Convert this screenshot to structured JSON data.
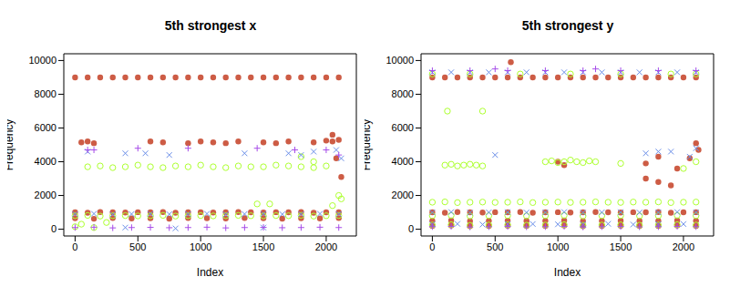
{
  "chart_data": [
    {
      "type": "scatter",
      "title": "5th strongest x",
      "x_label": "Index",
      "y_label": "Frequency",
      "xlim": [
        -90,
        2240
      ],
      "xticks": [
        0,
        500,
        1000,
        1500,
        2000
      ],
      "ylim": [
        -400,
        10400
      ],
      "yticks": [
        0,
        2000,
        4000,
        6000,
        8000,
        10000
      ],
      "series": [
        {
          "color": "#CD5C45",
          "marker": "circle",
          "x": [
            0,
            100,
            200,
            300,
            400,
            500,
            600,
            700,
            800,
            900,
            1000,
            1100,
            1200,
            1300,
            1400,
            1500,
            1600,
            1700,
            1800,
            1900,
            2000,
            2100,
            50,
            100,
            150,
            600,
            700,
            900,
            1000,
            1100,
            1200,
            1300,
            1500,
            1600,
            1700,
            1900,
            2000,
            2050,
            2100,
            0,
            100,
            200,
            300,
            400,
            500,
            600,
            700,
            800,
            900,
            1000,
            1100,
            1200,
            1300,
            1400,
            1500,
            1600,
            1700,
            1800,
            1900,
            2000,
            2100,
            0,
            150,
            300,
            450,
            600,
            750,
            900,
            1050,
            1200,
            1350,
            1500,
            1650,
            1800,
            1950,
            2100,
            2050,
            2080,
            2120
          ],
          "values": [
            9000,
            9000,
            9000,
            9000,
            9000,
            9000,
            9000,
            9000,
            9000,
            9000,
            9000,
            9000,
            9000,
            9000,
            9000,
            9000,
            9000,
            9000,
            9000,
            9000,
            9000,
            9000,
            5150,
            5200,
            5100,
            5200,
            5150,
            5100,
            5200,
            5150,
            5100,
            5200,
            5150,
            5100,
            5200,
            5150,
            5250,
            5200,
            5300,
            1000,
            980,
            1020,
            1000,
            990,
            1010,
            1000,
            1020,
            980,
            1000,
            1010,
            990,
            1000,
            1020,
            1000,
            990,
            1010,
            1000,
            1020,
            980,
            1000,
            1010,
            650,
            620,
            660,
            640,
            650,
            630,
            660,
            650,
            640,
            660,
            650,
            630,
            650,
            640,
            660,
            5600,
            4200,
            3100
          ]
        },
        {
          "color": "#ADFF2F",
          "marker": "open_circle",
          "x": [
            100,
            200,
            300,
            400,
            500,
            600,
            700,
            800,
            900,
            1000,
            1100,
            1200,
            1300,
            1400,
            1500,
            1600,
            1700,
            1800,
            1900,
            2000,
            1800,
            1900,
            0,
            100,
            200,
            300,
            400,
            500,
            600,
            700,
            800,
            900,
            1000,
            1100,
            1200,
            1300,
            1400,
            1500,
            1600,
            1700,
            1800,
            1900,
            2000,
            2100,
            0,
            50,
            150,
            250,
            1450,
            1550,
            2050,
            2100,
            2120
          ],
          "values": [
            3700,
            3750,
            3650,
            3700,
            3800,
            3700,
            3650,
            3750,
            3700,
            3800,
            3700,
            3650,
            3750,
            3700,
            3700,
            3800,
            3750,
            3700,
            3650,
            3750,
            4300,
            4000,
            800,
            820,
            780,
            800,
            810,
            790,
            800,
            820,
            780,
            800,
            810,
            790,
            800,
            820,
            800,
            790,
            810,
            800,
            820,
            780,
            800,
            810,
            150,
            300,
            100,
            400,
            1500,
            1500,
            1400,
            2000,
            1800
          ]
        },
        {
          "color": "#6A8EE8",
          "marker": "x",
          "x": [
            100,
            400,
            560,
            750,
            1350,
            1700,
            1800,
            1900,
            2080,
            2120,
            0,
            150,
            300,
            450,
            600,
            750,
            900,
            1050,
            1200,
            1350,
            1500,
            1650,
            1800,
            1950,
            2100,
            400,
            800,
            1500
          ],
          "values": [
            4600,
            4500,
            4500,
            4400,
            4500,
            4500,
            4400,
            4600,
            4700,
            4200,
            900,
            920,
            880,
            900,
            910,
            890,
            900,
            920,
            880,
            900,
            910,
            890,
            900,
            920,
            900,
            100,
            50,
            100
          ]
        },
        {
          "color": "#A64CE8",
          "marker": "plus",
          "x": [
            100,
            150,
            500,
            900,
            1450,
            1750,
            2000,
            2100,
            0,
            150,
            300,
            450,
            600,
            750,
            900,
            1050,
            1200,
            1350,
            1500,
            1650,
            1800,
            1950,
            2100
          ],
          "values": [
            4700,
            4700,
            4800,
            4800,
            4800,
            4700,
            4700,
            4400,
            100,
            120,
            80,
            100,
            110,
            90,
            100,
            120,
            80,
            100,
            110,
            90,
            100,
            120,
            100
          ]
        }
      ]
    },
    {
      "type": "scatter",
      "title": "5th strongest y",
      "x_label": "Index",
      "y_label": "Frequency",
      "xlim": [
        -90,
        2240
      ],
      "xticks": [
        0,
        500,
        1000,
        1500,
        2000
      ],
      "ylim": [
        -400,
        10400
      ],
      "yticks": [
        0,
        2000,
        4000,
        6000,
        8000,
        10000
      ],
      "series": [
        {
          "color": "#CD5C45",
          "marker": "circle",
          "x": [
            0,
            100,
            200,
            300,
            400,
            500,
            600,
            700,
            800,
            900,
            1000,
            1100,
            1200,
            1300,
            1400,
            1500,
            1600,
            1700,
            1800,
            1900,
            2000,
            2100,
            625,
            1000,
            1050,
            1700,
            1800,
            1900,
            1950,
            2050,
            2100,
            2120,
            1700,
            1800,
            0,
            100,
            200,
            300,
            400,
            500,
            600,
            700,
            800,
            900,
            1000,
            1100,
            1200,
            1300,
            1400,
            1500,
            1600,
            1700,
            1800,
            1900,
            2000,
            2100,
            0,
            150,
            300,
            450,
            600,
            750,
            900,
            1050,
            1200,
            1350,
            1500,
            1650,
            1800,
            1950,
            2100,
            0,
            150,
            300,
            450,
            600,
            750,
            900,
            1050,
            1200,
            1350,
            1500,
            1650,
            1800,
            1950,
            2100
          ],
          "values": [
            9000,
            9000,
            9000,
            9000,
            9000,
            9000,
            9000,
            9000,
            9000,
            9000,
            9000,
            9000,
            9000,
            9000,
            9000,
            9000,
            9000,
            9000,
            9000,
            9000,
            9000,
            9000,
            9900,
            4000,
            3800,
            3000,
            2800,
            2600,
            3600,
            4200,
            5100,
            4700,
            3900,
            4300,
            1000,
            980,
            1020,
            1000,
            990,
            1010,
            1000,
            1020,
            980,
            1000,
            1010,
            990,
            1000,
            1020,
            1000,
            990,
            1010,
            1000,
            1020,
            980,
            1000,
            1010,
            500,
            520,
            480,
            500,
            510,
            490,
            500,
            520,
            480,
            500,
            510,
            490,
            500,
            520,
            500,
            200,
            220,
            180,
            200,
            210,
            190,
            200,
            220,
            180,
            200,
            210,
            190,
            200,
            220,
            200
          ]
        },
        {
          "color": "#ADFF2F",
          "marker": "open_circle",
          "x": [
            0,
            300,
            700,
            1100,
            1500,
            1900,
            2100,
            120,
            400,
            100,
            150,
            200,
            250,
            300,
            350,
            400,
            900,
            950,
            1000,
            1050,
            1100,
            1150,
            1200,
            1250,
            1300,
            1500,
            2000,
            2100,
            0,
            100,
            200,
            300,
            400,
            500,
            600,
            700,
            800,
            900,
            1000,
            1100,
            1200,
            1300,
            1400,
            1500,
            1600,
            1700,
            1800,
            1900,
            2000,
            2100,
            0,
            150,
            300,
            450,
            600,
            750,
            900,
            1050,
            1200,
            1350,
            1500,
            1650,
            1800,
            1950,
            2100,
            0,
            150,
            300,
            450,
            600,
            750,
            900,
            1050,
            1200,
            1350,
            1500,
            1650,
            1800,
            1950,
            2100
          ],
          "values": [
            9200,
            9200,
            9200,
            9200,
            9200,
            9200,
            9200,
            7000,
            7000,
            3800,
            3850,
            3750,
            3800,
            3850,
            3800,
            3750,
            4000,
            4050,
            3950,
            4000,
            4100,
            4000,
            3950,
            4050,
            4000,
            3900,
            3600,
            4000,
            1600,
            1620,
            1580,
            1600,
            1610,
            1590,
            1600,
            1620,
            1580,
            1600,
            1610,
            1590,
            1600,
            1620,
            1600,
            1590,
            1610,
            1600,
            1620,
            1580,
            1600,
            1610,
            800,
            820,
            780,
            800,
            810,
            790,
            800,
            820,
            780,
            800,
            810,
            790,
            800,
            820,
            800,
            250,
            270,
            230,
            250,
            260,
            240,
            250,
            270,
            230,
            250,
            260,
            240,
            250,
            270,
            250
          ]
        },
        {
          "color": "#6A8EE8",
          "marker": "x",
          "x": [
            0,
            150,
            300,
            450,
            600,
            750,
            900,
            1050,
            1200,
            1350,
            1500,
            1650,
            1800,
            1950,
            2100,
            500,
            1700,
            1800,
            1900,
            2050,
            2100,
            0,
            150,
            300,
            450,
            600,
            750,
            900,
            1050,
            1200,
            1350,
            1500,
            1650,
            1800,
            1950,
            2100,
            0,
            200,
            400,
            600,
            800,
            1000,
            1200,
            1400,
            1600,
            1800,
            2000
          ],
          "values": [
            9300,
            9300,
            9300,
            9300,
            9300,
            9300,
            9300,
            9300,
            9300,
            9300,
            9300,
            9300,
            9300,
            9300,
            9300,
            4400,
            4500,
            4600,
            4600,
            4300,
            4800,
            1000,
            1020,
            980,
            1000,
            1010,
            990,
            1000,
            1020,
            980,
            1000,
            1010,
            990,
            1000,
            1020,
            1000,
            300,
            320,
            280,
            300,
            310,
            290,
            300,
            320,
            280,
            300,
            310
          ]
        },
        {
          "color": "#A64CE8",
          "marker": "plus",
          "x": [
            0,
            300,
            600,
            900,
            1200,
            1500,
            1800,
            2100,
            500,
            1300,
            0,
            150,
            300,
            450,
            600,
            750,
            900,
            1050,
            1200,
            1350,
            1500,
            1650,
            1800,
            1950,
            2100
          ],
          "values": [
            9400,
            9400,
            9400,
            9400,
            9400,
            9400,
            9400,
            9400,
            9500,
            9500,
            150,
            170,
            130,
            150,
            160,
            140,
            150,
            170,
            130,
            150,
            160,
            140,
            150,
            170,
            150
          ]
        }
      ]
    }
  ]
}
